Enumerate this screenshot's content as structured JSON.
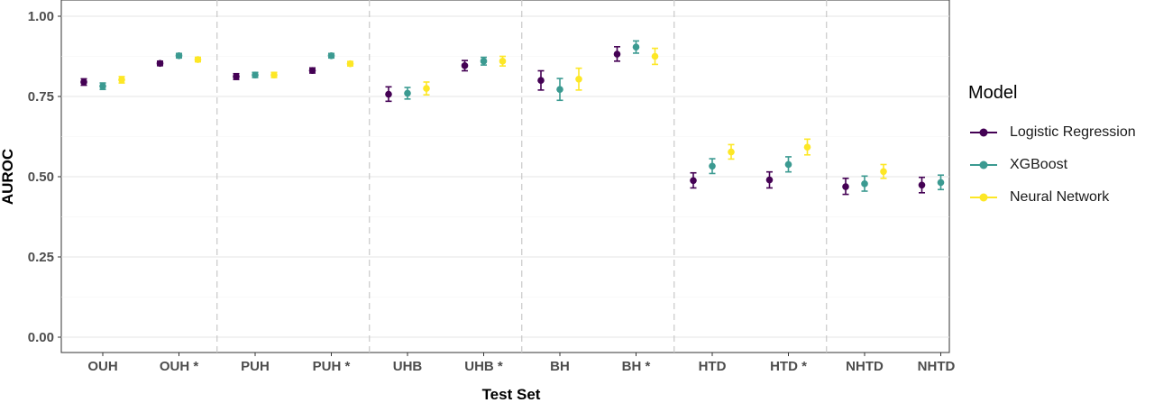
{
  "chart_data": {
    "type": "scatter",
    "xlabel": "Test Set",
    "ylabel": "AUROC",
    "ylim": [
      0,
      1
    ],
    "yticks": [
      "0.00",
      "0.25",
      "0.50",
      "0.75",
      "1.00"
    ],
    "categories": [
      "OUH",
      "OUH *",
      "PUH",
      "PUH *",
      "UHB",
      "UHB *",
      "BH",
      "BH *",
      "HTD",
      "HTD *",
      "NHTD",
      "NHTD *"
    ],
    "group_separators_after": [
      "OUH *",
      "PUH *",
      "UHB *",
      "BH *",
      "HTD *"
    ],
    "grid": true,
    "legend": {
      "title": "Model",
      "placement": "right"
    },
    "series": [
      {
        "name": "Logistic Regression",
        "color": "#440154",
        "values": [
          0.795,
          0.853,
          0.812,
          0.831,
          0.757,
          0.846,
          0.8,
          0.882,
          0.488,
          0.49,
          0.469,
          0.474
        ],
        "lower": [
          0.785,
          0.846,
          0.803,
          0.823,
          0.735,
          0.83,
          0.77,
          0.86,
          0.465,
          0.465,
          0.445,
          0.45
        ],
        "upper": [
          0.805,
          0.86,
          0.821,
          0.839,
          0.78,
          0.862,
          0.83,
          0.905,
          0.512,
          0.515,
          0.495,
          0.498
        ]
      },
      {
        "name": "XGBoost",
        "color": "#3B9A91",
        "values": [
          0.782,
          0.877,
          0.817,
          0.877,
          0.76,
          0.86,
          0.772,
          0.904,
          0.533,
          0.538,
          0.478,
          0.482
        ],
        "lower": [
          0.772,
          0.87,
          0.809,
          0.87,
          0.742,
          0.848,
          0.738,
          0.885,
          0.51,
          0.515,
          0.455,
          0.46
        ],
        "upper": [
          0.792,
          0.884,
          0.825,
          0.884,
          0.778,
          0.872,
          0.806,
          0.923,
          0.556,
          0.562,
          0.502,
          0.505
        ]
      },
      {
        "name": "Neural Network",
        "color": "#FDE725",
        "values": [
          0.802,
          0.865,
          0.817,
          0.852,
          0.775,
          0.86,
          0.804,
          0.875,
          0.577,
          0.592,
          0.516,
          0.522
        ],
        "lower": [
          0.792,
          0.858,
          0.809,
          0.845,
          0.755,
          0.845,
          0.77,
          0.85,
          0.555,
          0.568,
          0.495,
          0.5
        ],
        "upper": [
          0.812,
          0.872,
          0.825,
          0.859,
          0.795,
          0.875,
          0.838,
          0.9,
          0.6,
          0.617,
          0.538,
          0.545
        ]
      }
    ]
  }
}
